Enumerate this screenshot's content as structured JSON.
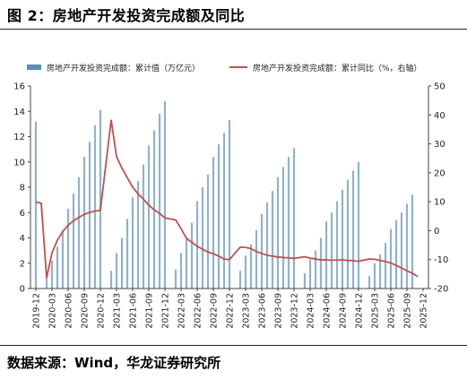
{
  "figure_title": "图 2：房地产开发投资完成额及同比",
  "source_text": "数据来源：Wind，华龙证券研究所",
  "colors": {
    "bar": "#8fb2cc",
    "legend_bar": "#5b8db5",
    "line": "#c0504d",
    "axis": "#444444",
    "text": "#222222"
  },
  "chart_data": {
    "type": "bar+line",
    "legend_position": "top",
    "grid": false,
    "left_axis": {
      "ylim": [
        0,
        16
      ],
      "ticks": [
        "0",
        "2",
        "4",
        "6",
        "8",
        "10",
        "12",
        "14",
        "16"
      ]
    },
    "right_axis": {
      "ylim": [
        -20,
        50
      ],
      "ticks": [
        "-20",
        "-10",
        "0",
        "10",
        "20",
        "30",
        "40",
        "50"
      ]
    },
    "x_tick_labels": [
      "2019-12",
      "2020-03",
      "2020-06",
      "2020-09",
      "2020-12",
      "2021-03",
      "2021-06",
      "2021-09",
      "2021-12",
      "2022-03",
      "2022-06",
      "2022-09",
      "2022-12",
      "2023-03",
      "2023-06",
      "2023-09",
      "2023-12",
      "2024-03",
      "2024-06",
      "2024-09",
      "2024-12",
      "2025-03",
      "2025-06",
      "2025-09",
      "2025-12"
    ],
    "months": [
      "2019-12",
      "2020-01",
      "2020-02",
      "2020-03",
      "2020-04",
      "2020-05",
      "2020-06",
      "2020-07",
      "2020-08",
      "2020-09",
      "2020-10",
      "2020-11",
      "2020-12",
      "2021-01",
      "2021-02",
      "2021-03",
      "2021-04",
      "2021-05",
      "2021-06",
      "2021-07",
      "2021-08",
      "2021-09",
      "2021-10",
      "2021-11",
      "2021-12",
      "2022-01",
      "2022-02",
      "2022-03",
      "2022-04",
      "2022-05",
      "2022-06",
      "2022-07",
      "2022-08",
      "2022-09",
      "2022-10",
      "2022-11",
      "2022-12",
      "2023-01",
      "2023-02",
      "2023-03",
      "2023-04",
      "2023-05",
      "2023-06",
      "2023-07",
      "2023-08",
      "2023-09",
      "2023-10",
      "2023-11",
      "2023-12",
      "2024-01",
      "2024-02",
      "2024-03",
      "2024-04",
      "2024-05",
      "2024-06",
      "2024-07",
      "2024-08",
      "2024-09",
      "2024-10",
      "2024-11",
      "2024-12",
      "2025-01",
      "2025-02",
      "2025-03",
      "2025-04",
      "2025-05",
      "2025-06",
      "2025-07",
      "2025-08",
      "2025-09",
      "2025-10",
      "2025-11",
      "2025-12"
    ],
    "series": [
      {
        "name": "房地产开发投资完成额：累计值（万亿元）",
        "kind": "bar",
        "axis": "left",
        "values": [
          13.2,
          null,
          1.0,
          2.2,
          3.3,
          4.6,
          6.3,
          7.5,
          8.8,
          10.4,
          11.6,
          12.9,
          14.1,
          null,
          1.4,
          2.8,
          4.0,
          5.5,
          7.2,
          8.5,
          9.8,
          11.3,
          12.5,
          13.8,
          14.8,
          null,
          1.5,
          2.8,
          3.9,
          5.2,
          6.9,
          8.0,
          9.0,
          10.4,
          11.4,
          12.3,
          13.3,
          null,
          1.4,
          2.6,
          3.5,
          4.6,
          5.9,
          6.8,
          7.7,
          8.8,
          9.6,
          10.4,
          11.1,
          null,
          1.2,
          2.3,
          3.0,
          4.0,
          5.3,
          6.0,
          6.9,
          7.8,
          8.6,
          9.3,
          10.0,
          null,
          1.0,
          2.0,
          2.7,
          3.6,
          4.7,
          5.4,
          6.0,
          6.7,
          7.4,
          null,
          null
        ]
      },
      {
        "name": "房地产开发投资完成额：累计同比（%，右轴）",
        "kind": "line",
        "axis": "right",
        "values": [
          9.9,
          9.5,
          -16.3,
          -7.7,
          -3.3,
          -0.3,
          1.9,
          3.4,
          4.6,
          5.6,
          6.3,
          6.8,
          7.0,
          null,
          38.3,
          25.6,
          21.6,
          18.3,
          15.0,
          12.7,
          10.9,
          8.8,
          7.2,
          6.0,
          4.4,
          null,
          3.7,
          0.7,
          -2.7,
          -4.0,
          -5.4,
          -6.4,
          -7.4,
          -8.0,
          -8.8,
          -9.8,
          -10.0,
          null,
          -5.7,
          -5.8,
          -6.2,
          -7.2,
          -7.9,
          -8.5,
          -8.8,
          -9.1,
          -9.3,
          -9.4,
          -9.6,
          null,
          -9.0,
          -9.5,
          -9.8,
          -10.1,
          -10.1,
          -10.2,
          -10.2,
          -10.1,
          -10.3,
          -10.4,
          -10.6,
          null,
          -9.8,
          -9.9,
          -10.3,
          -10.7,
          -11.2,
          -12.0,
          -12.9,
          -13.9,
          -14.7,
          -15.9,
          null
        ]
      }
    ]
  }
}
